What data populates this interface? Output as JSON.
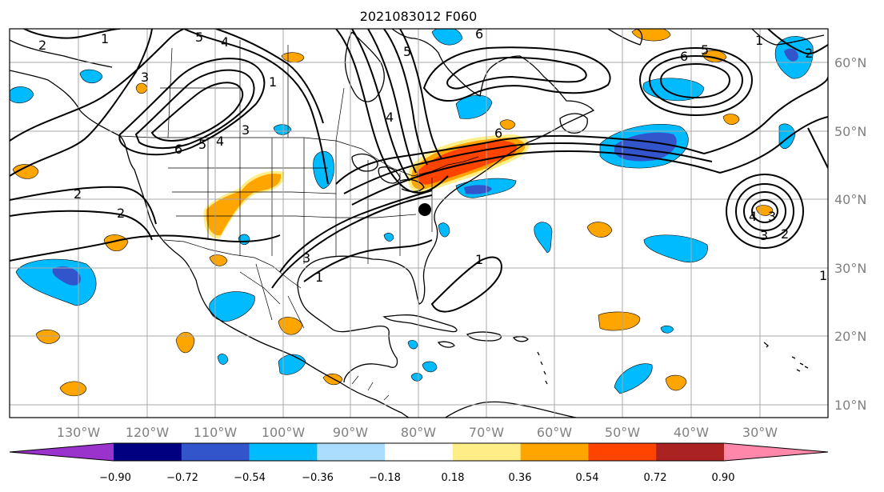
{
  "title": "2021083012 F060",
  "x_ticks": [
    "130°W",
    "120°W",
    "110°W",
    "100°W",
    "90°W",
    "80°W",
    "70°W",
    "60°W",
    "50°W",
    "40°W",
    "30°W"
  ],
  "y_ticks": [
    "60°N",
    "50°N",
    "40°N",
    "30°N",
    "20°N",
    "10°N"
  ],
  "colorbar": {
    "colors": [
      "#9933cc",
      "#000080",
      "#3355cc",
      "#00bbff",
      "#aaddff",
      "#ffffff",
      "#ffee88",
      "#ffa500",
      "#ff4400",
      "#aa2222",
      "#ff88aa"
    ],
    "labels": [
      "−0.90",
      "−0.72",
      "−0.54",
      "−0.36",
      "−0.18",
      "0.18",
      "0.36",
      "0.54",
      "0.72",
      "0.90"
    ]
  },
  "contour_labels": [
    "2",
    "1",
    "5",
    "4",
    "3",
    "2",
    "6",
    "5",
    "4",
    "3",
    "2",
    "6",
    "1",
    "6",
    "5",
    "4",
    "3",
    "6",
    "5",
    "1",
    "2",
    "3",
    "4",
    "3",
    "2",
    "1",
    "1",
    "1"
  ],
  "marker": {
    "symbol": "black-dot",
    "lon": -79,
    "lat": 38.6
  }
}
